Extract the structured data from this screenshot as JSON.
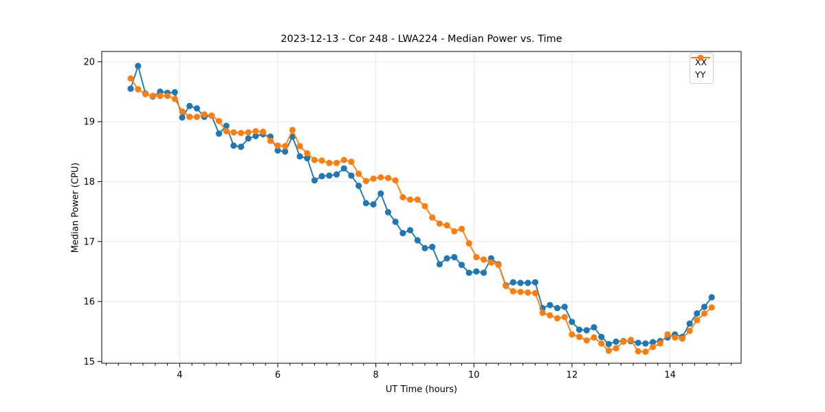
{
  "chart_data": {
    "type": "line",
    "title": "2023-12-13 - Cor 248 - LWA224 - Median Power vs. Time",
    "xlabel": "UT Time (hours)",
    "ylabel": "Median Power (CPU)",
    "xlim": [
      2.41,
      15.45
    ],
    "ylim": [
      14.97,
      20.17
    ],
    "xticks": [
      4,
      6,
      8,
      10,
      12,
      14
    ],
    "yticks": [
      15,
      16,
      17,
      18,
      19,
      20
    ],
    "minor_xtick_step": 0.25,
    "grid": true,
    "grid_color": "#e8e8e8",
    "legend_position": "upper right",
    "marker": "circle",
    "x": [
      3.0,
      3.15,
      3.3,
      3.45,
      3.6,
      3.75,
      3.9,
      4.05,
      4.2,
      4.35,
      4.5,
      4.65,
      4.8,
      4.95,
      5.1,
      5.25,
      5.4,
      5.55,
      5.7,
      5.85,
      6.0,
      6.15,
      6.3,
      6.45,
      6.6,
      6.75,
      6.9,
      7.05,
      7.2,
      7.35,
      7.5,
      7.65,
      7.8,
      7.95,
      8.1,
      8.25,
      8.4,
      8.55,
      8.7,
      8.85,
      9.0,
      9.15,
      9.3,
      9.45,
      9.6,
      9.75,
      9.9,
      10.05,
      10.2,
      10.35,
      10.5,
      10.65,
      10.8,
      10.95,
      11.1,
      11.25,
      11.4,
      11.55,
      11.7,
      11.85,
      12.0,
      12.15,
      12.3,
      12.45,
      12.6,
      12.75,
      12.9,
      13.05,
      13.2,
      13.35,
      13.5,
      13.65,
      13.8,
      13.95,
      14.1,
      14.25,
      14.4,
      14.55,
      14.7,
      14.85
    ],
    "series": [
      {
        "name": "XX",
        "color": "#1f77b4",
        "values": [
          19.55,
          19.93,
          19.47,
          19.42,
          19.5,
          19.48,
          19.49,
          19.07,
          19.26,
          19.22,
          19.08,
          19.1,
          18.8,
          18.93,
          18.6,
          18.58,
          18.72,
          18.76,
          18.79,
          18.75,
          18.52,
          18.5,
          18.75,
          18.42,
          18.39,
          18.02,
          18.09,
          18.1,
          18.12,
          18.22,
          18.1,
          17.93,
          17.64,
          17.62,
          17.8,
          17.49,
          17.33,
          17.14,
          17.19,
          17.02,
          16.89,
          16.91,
          16.62,
          16.72,
          16.74,
          16.61,
          16.48,
          16.5,
          16.48,
          16.72,
          16.62,
          16.27,
          16.32,
          16.31,
          16.31,
          16.32,
          15.89,
          15.94,
          15.89,
          15.91,
          15.66,
          15.53,
          15.52,
          15.57,
          15.41,
          15.29,
          15.33,
          15.34,
          15.34,
          15.31,
          15.3,
          15.32,
          15.34,
          15.4,
          15.45,
          15.41,
          15.63,
          15.8,
          15.91,
          16.07
        ]
      },
      {
        "name": "YY",
        "color": "#ff7f0e",
        "values": [
          19.72,
          19.54,
          19.46,
          19.43,
          19.43,
          19.43,
          19.38,
          19.17,
          19.08,
          19.08,
          19.12,
          19.1,
          19.01,
          18.84,
          18.82,
          18.81,
          18.82,
          18.84,
          18.83,
          18.68,
          18.6,
          18.59,
          18.86,
          18.59,
          18.47,
          18.36,
          18.35,
          18.31,
          18.31,
          18.36,
          18.33,
          18.13,
          18.01,
          18.05,
          18.07,
          18.06,
          18.02,
          17.74,
          17.7,
          17.7,
          17.59,
          17.4,
          17.3,
          17.27,
          17.17,
          17.21,
          16.97,
          16.74,
          16.7,
          16.65,
          16.61,
          16.26,
          16.17,
          16.16,
          16.15,
          16.14,
          15.81,
          15.77,
          15.72,
          15.74,
          15.45,
          15.41,
          15.35,
          15.4,
          15.3,
          15.18,
          15.22,
          15.33,
          15.36,
          15.17,
          15.16,
          15.24,
          15.3,
          15.45,
          15.4,
          15.38,
          15.51,
          15.69,
          15.8,
          15.9
        ]
      }
    ]
  }
}
